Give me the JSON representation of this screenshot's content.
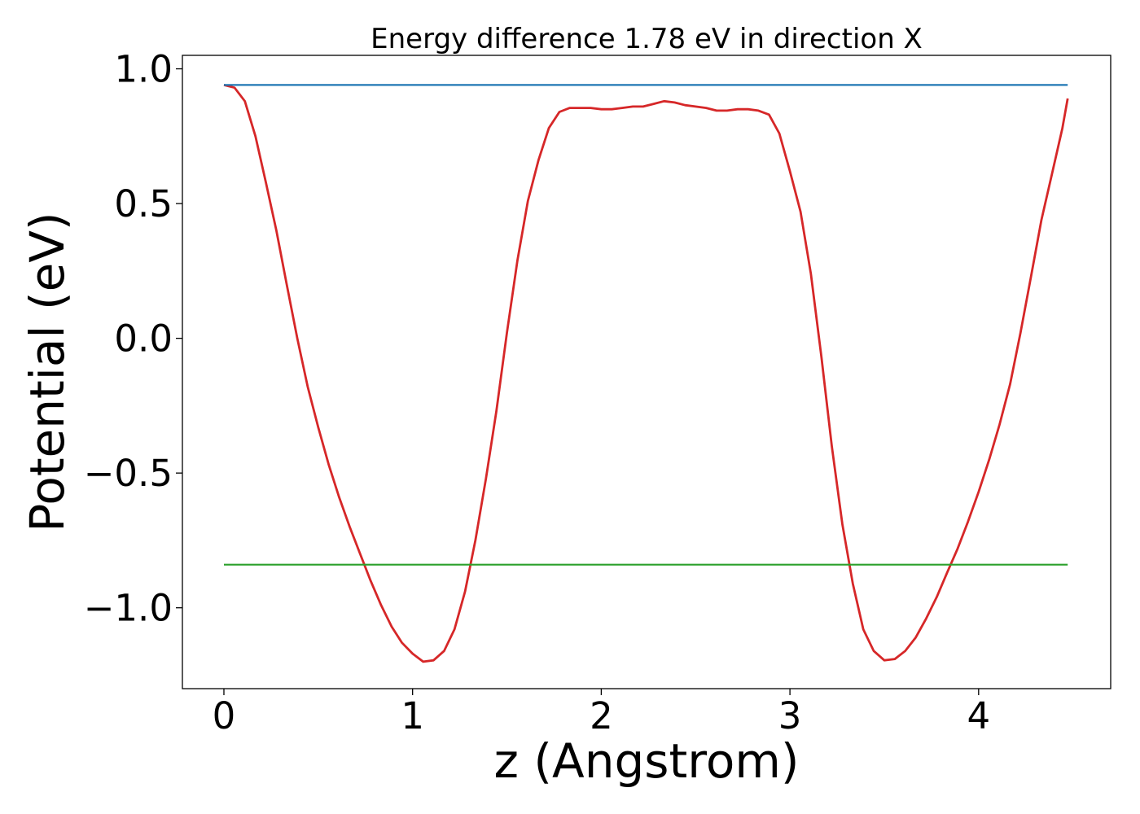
{
  "chart_data": {
    "type": "line",
    "title": "Energy difference 1.78 eV in direction X",
    "xlabel": "z (Angstrom)",
    "ylabel": "Potential (eV)",
    "xlim": [
      -0.22,
      4.7
    ],
    "ylim": [
      -1.3,
      1.05
    ],
    "xticks": [
      0,
      1,
      2,
      3,
      4
    ],
    "xtick_labels": [
      "0",
      "1",
      "2",
      "3",
      "4"
    ],
    "yticks": [
      1.0,
      0.5,
      0.0,
      -0.5,
      -1.0
    ],
    "ytick_labels": [
      "1.0",
      "0.5",
      "0.0",
      "−0.5",
      "−1.0"
    ],
    "grid": false,
    "legend": "none",
    "series": [
      {
        "color": "#d62728",
        "x": [
          0,
          0.056,
          0.111,
          0.167,
          0.222,
          0.278,
          0.333,
          0.389,
          0.444,
          0.5,
          0.556,
          0.611,
          0.667,
          0.722,
          0.778,
          0.833,
          0.889,
          0.944,
          1.0,
          1.056,
          1.111,
          1.167,
          1.222,
          1.278,
          1.333,
          1.389,
          1.444,
          1.5,
          1.556,
          1.611,
          1.667,
          1.722,
          1.778,
          1.833,
          1.889,
          1.944,
          2.0,
          2.056,
          2.111,
          2.167,
          2.222,
          2.278,
          2.333,
          2.389,
          2.444,
          2.5,
          2.556,
          2.611,
          2.667,
          2.722,
          2.778,
          2.833,
          2.889,
          2.944,
          3.0,
          3.056,
          3.111,
          3.167,
          3.222,
          3.278,
          3.333,
          3.389,
          3.444,
          3.5,
          3.556,
          3.611,
          3.667,
          3.722,
          3.778,
          3.833,
          3.889,
          3.944,
          4.0,
          4.056,
          4.111,
          4.167,
          4.222,
          4.278,
          4.333,
          4.389,
          4.444,
          4.472
        ],
        "y": [
          0.94,
          0.93,
          0.88,
          0.75,
          0.58,
          0.4,
          0.2,
          0.0,
          -0.18,
          -0.33,
          -0.47,
          -0.59,
          -0.7,
          -0.8,
          -0.9,
          -0.99,
          -1.07,
          -1.13,
          -1.17,
          -1.2,
          -1.195,
          -1.16,
          -1.08,
          -0.94,
          -0.75,
          -0.52,
          -0.27,
          0.02,
          0.29,
          0.51,
          0.66,
          0.78,
          0.84,
          0.855,
          0.855,
          0.855,
          0.85,
          0.85,
          0.855,
          0.86,
          0.86,
          0.87,
          0.88,
          0.875,
          0.865,
          0.86,
          0.855,
          0.845,
          0.845,
          0.85,
          0.85,
          0.845,
          0.83,
          0.76,
          0.62,
          0.47,
          0.24,
          -0.07,
          -0.4,
          -0.69,
          -0.91,
          -1.08,
          -1.16,
          -1.195,
          -1.19,
          -1.16,
          -1.11,
          -1.04,
          -0.96,
          -0.87,
          -0.78,
          -0.68,
          -0.57,
          -0.45,
          -0.32,
          -0.17,
          0.02,
          0.23,
          0.44,
          0.61,
          0.78,
          0.89
        ]
      },
      {
        "color": "#1f77b4",
        "x": [
          0,
          4.472
        ],
        "y": [
          0.94,
          0.94
        ]
      },
      {
        "color": "#2ca02c",
        "x": [
          0,
          4.472
        ],
        "y": [
          -0.84,
          -0.84
        ]
      }
    ]
  }
}
